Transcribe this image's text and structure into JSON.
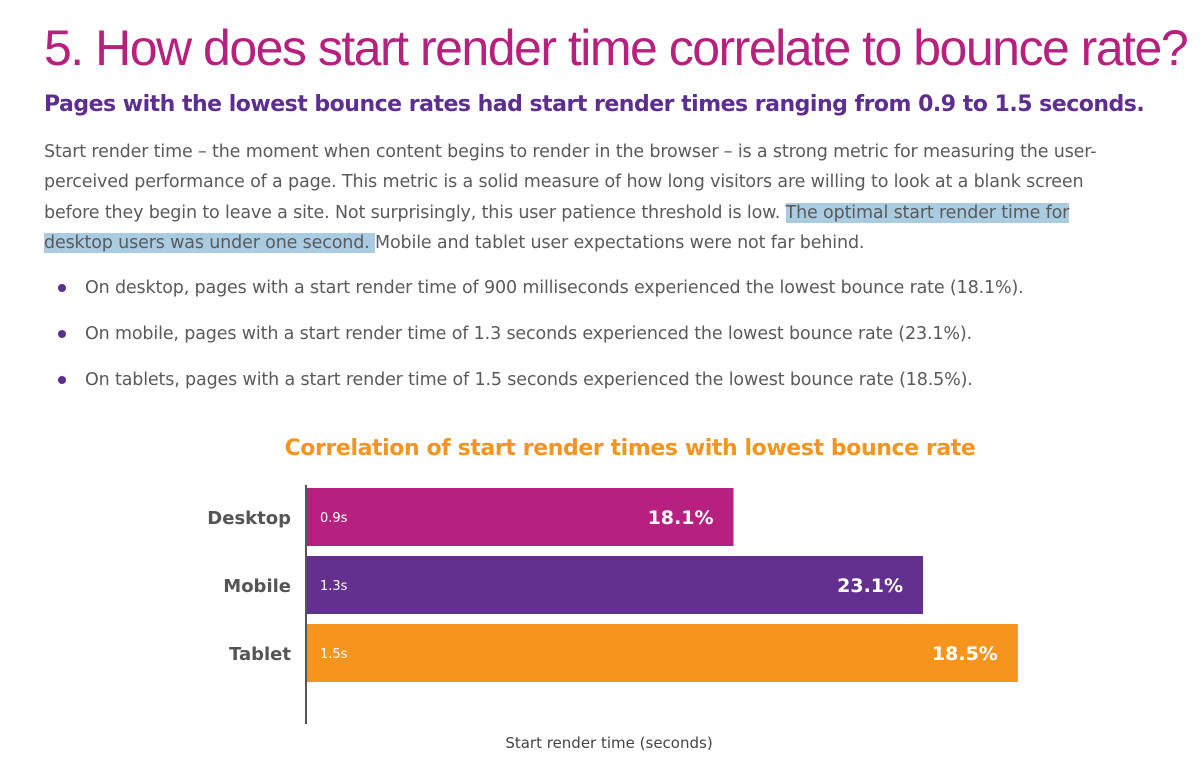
{
  "heading": "5. How does start render time correlate to bounce rate?",
  "subheading": "Pages with the lowest bounce rates had start render times ranging from 0.9 to 1.5 seconds.",
  "paragraph": {
    "line1": "Start render time – the moment when content begins to render in the browser – is a strong metric for measuring the user-",
    "line2": "perceived performance of a page. This metric is a solid measure of how long visitors are willing to look at a blank screen",
    "line3_plain": "before they begin to leave a site. Not surprisingly, this user patience threshold is low. ",
    "line3_highlight": "The optimal start render time for",
    "line4_highlight": "desktop users was under one second. ",
    "line4_plain": "Mobile and tablet user expectations were not far behind."
  },
  "bullets": [
    "On desktop, pages with a start render time of 900 milliseconds experienced the lowest bounce rate (18.1%).",
    "On mobile, pages with a start render time of 1.3 seconds experienced the lowest bounce rate (23.1%).",
    "On tablets, pages with a start render time of 1.5 seconds experienced the lowest bounce rate (18.5%)."
  ],
  "colors": {
    "heading": "#b7207f",
    "subheading": "#5e2d91",
    "highlight": "#a9cce3",
    "chart_title": "#f7941d"
  },
  "chart_data": {
    "type": "bar",
    "orientation": "horizontal",
    "title": "Correlation of start render times with lowest bounce rate",
    "xlabel": "Start render time (seconds)",
    "ylabel": "",
    "xlim": [
      0,
      1.8
    ],
    "grid": false,
    "legend": "none",
    "categories": [
      "Desktop",
      "Mobile",
      "Tablet"
    ],
    "values": [
      0.9,
      1.3,
      1.5
    ],
    "value_labels": [
      "0.9s",
      "1.3s",
      "1.5s"
    ],
    "bounce_rate_labels": [
      "18.1%",
      "23.1%",
      "18.5%"
    ],
    "bar_colors": [
      "#b7207f",
      "#64308f",
      "#f7941d"
    ]
  }
}
